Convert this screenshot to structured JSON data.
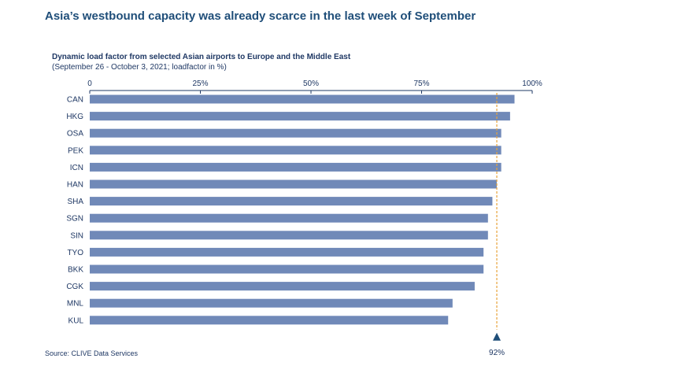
{
  "headline": "Asia’s westbound capacity was already scarce in the last week of September",
  "source": "Source: CLIVE Data Services",
  "chart_data": {
    "type": "bar",
    "orientation": "horizontal",
    "title": "Dynamic load factor from selected Asian airports to Europe and the Middle East",
    "subtitle": "(September 26 - October 3, 2021; loadfactor in %)",
    "categories": [
      "CAN",
      "HKG",
      "OSA",
      "PEK",
      "ICN",
      "HAN",
      "SHA",
      "SGN",
      "SIN",
      "TYO",
      "BKK",
      "CGK",
      "MNL",
      "KUL"
    ],
    "values": [
      96,
      95,
      93,
      93,
      93,
      92,
      91,
      90,
      90,
      89,
      89,
      87,
      82,
      81
    ],
    "xlim": [
      0,
      100
    ],
    "xticks": [
      0,
      25,
      50,
      75,
      100
    ],
    "xtick_labels": [
      "0",
      "25%",
      "50%",
      "75%",
      "100%"
    ],
    "axis_position": "top",
    "reference_line": {
      "value": 92,
      "label": "92%"
    },
    "grid": false,
    "colors": {
      "bar": "#7089b8",
      "reference": "#e8a23a",
      "marker": "#1f4e79",
      "text": "#1f3864"
    }
  }
}
